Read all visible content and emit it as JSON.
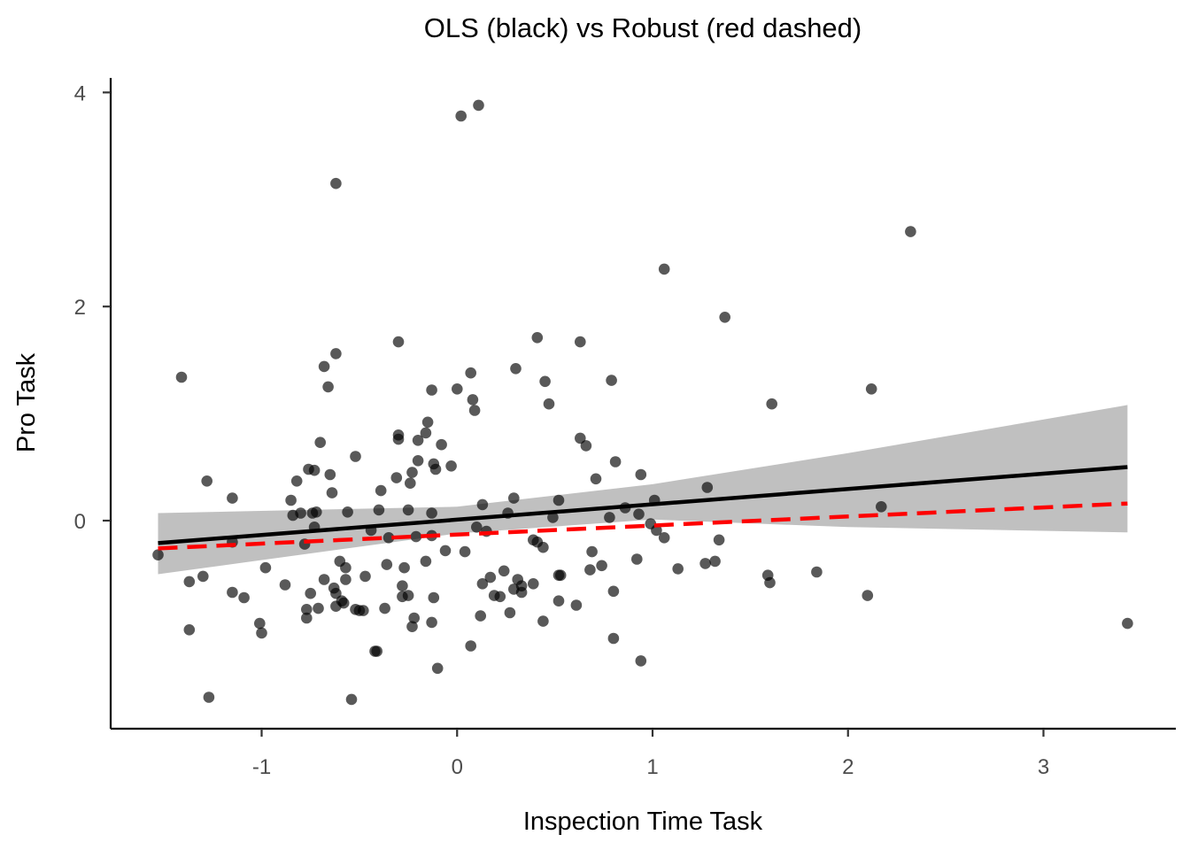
{
  "chart_data": {
    "type": "scatter",
    "title": "OLS (black) vs Robust (red dashed)",
    "xlabel": "Inspection Time Task",
    "ylabel": "Pro Task",
    "xlim": [
      -1.8,
      3.6
    ],
    "ylim": [
      -3.85,
      4.3
    ],
    "x_ticks": [
      -1,
      0,
      1,
      2,
      3
    ],
    "x_tick_labels": [
      "-1",
      "0",
      "1",
      "2",
      "3"
    ],
    "y_ticks": [
      0,
      2,
      4
    ],
    "y_tick_labels": [
      "0",
      "2",
      "4"
    ],
    "grid": false,
    "point_color": "#000000",
    "point_opacity": 0.65,
    "series": [
      {
        "type": "scatter",
        "points": [
          [
            -1.53,
            -0.32
          ],
          [
            -1.41,
            1.34
          ],
          [
            -1.37,
            -0.57
          ],
          [
            -1.37,
            -1.02
          ],
          [
            -1.3,
            -0.52
          ],
          [
            -1.28,
            0.37
          ],
          [
            -1.27,
            -1.65
          ],
          [
            -1.15,
            0.21
          ],
          [
            -1.15,
            -0.2
          ],
          [
            -1.15,
            -0.67
          ],
          [
            -1.09,
            -0.72
          ],
          [
            -1.01,
            -0.96
          ],
          [
            -1.0,
            -1.05
          ],
          [
            -0.98,
            -0.44
          ],
          [
            -0.88,
            -0.6
          ],
          [
            -0.85,
            0.19
          ],
          [
            -0.84,
            0.05
          ],
          [
            -0.82,
            0.37
          ],
          [
            -0.8,
            0.07
          ],
          [
            -0.78,
            -0.22
          ],
          [
            -0.77,
            -0.91
          ],
          [
            -0.77,
            -0.83
          ],
          [
            -0.76,
            0.48
          ],
          [
            -0.75,
            -0.68
          ],
          [
            -0.74,
            0.07
          ],
          [
            -0.73,
            0.47
          ],
          [
            -0.73,
            -0.06
          ],
          [
            -0.72,
            0.08
          ],
          [
            -0.71,
            -0.82
          ],
          [
            -0.7,
            0.73
          ],
          [
            -0.68,
            1.44
          ],
          [
            -0.68,
            -0.55
          ],
          [
            -0.66,
            1.25
          ],
          [
            -0.65,
            0.43
          ],
          [
            -0.64,
            0.26
          ],
          [
            -0.63,
            -0.63
          ],
          [
            -0.62,
            -0.68
          ],
          [
            -0.62,
            -0.8
          ],
          [
            -0.62,
            1.56
          ],
          [
            -0.62,
            3.15
          ],
          [
            -0.6,
            -0.38
          ],
          [
            -0.59,
            -0.75
          ],
          [
            -0.58,
            -0.77
          ],
          [
            -0.57,
            -0.44
          ],
          [
            -0.57,
            -0.55
          ],
          [
            -0.56,
            0.08
          ],
          [
            -0.54,
            -1.67
          ],
          [
            -0.52,
            0.6
          ],
          [
            -0.52,
            -0.83
          ],
          [
            -0.5,
            -0.84
          ],
          [
            -0.48,
            -0.84
          ],
          [
            -0.47,
            -0.52
          ],
          [
            -0.44,
            -0.09
          ],
          [
            -0.42,
            -1.22
          ],
          [
            -0.41,
            -1.22
          ],
          [
            -0.4,
            0.1
          ],
          [
            -0.39,
            0.28
          ],
          [
            -0.37,
            -0.82
          ],
          [
            -0.36,
            -0.41
          ],
          [
            -0.35,
            -0.16
          ],
          [
            -0.31,
            0.4
          ],
          [
            -0.3,
            1.67
          ],
          [
            -0.3,
            0.76
          ],
          [
            -0.3,
            0.8
          ],
          [
            -0.28,
            -0.61
          ],
          [
            -0.28,
            -0.71
          ],
          [
            -0.27,
            -0.44
          ],
          [
            -0.25,
            -0.7
          ],
          [
            -0.25,
            0.1
          ],
          [
            -0.24,
            0.35
          ],
          [
            -0.23,
            -0.99
          ],
          [
            -0.23,
            0.45
          ],
          [
            -0.22,
            -0.91
          ],
          [
            -0.21,
            -0.15
          ],
          [
            -0.2,
            0.56
          ],
          [
            -0.2,
            0.75
          ],
          [
            -0.16,
            0.82
          ],
          [
            -0.16,
            -0.38
          ],
          [
            -0.15,
            0.92
          ],
          [
            -0.13,
            -0.95
          ],
          [
            -0.13,
            1.22
          ],
          [
            -0.13,
            -0.14
          ],
          [
            -0.13,
            0.07
          ],
          [
            -0.12,
            0.53
          ],
          [
            -0.12,
            -0.72
          ],
          [
            -0.11,
            0.48
          ],
          [
            -0.1,
            -1.38
          ],
          [
            -0.08,
            0.71
          ],
          [
            -0.06,
            -0.28
          ],
          [
            -0.03,
            0.51
          ],
          [
            0.0,
            1.23
          ],
          [
            0.02,
            3.78
          ],
          [
            0.04,
            -0.29
          ],
          [
            0.07,
            -1.17
          ],
          [
            0.07,
            1.38
          ],
          [
            0.08,
            1.13
          ],
          [
            0.09,
            1.03
          ],
          [
            0.1,
            -0.06
          ],
          [
            0.11,
            3.88
          ],
          [
            0.12,
            -0.89
          ],
          [
            0.13,
            0.15
          ],
          [
            0.13,
            -0.59
          ],
          [
            0.15,
            -0.1
          ],
          [
            0.17,
            -0.53
          ],
          [
            0.19,
            -0.7
          ],
          [
            0.22,
            -0.71
          ],
          [
            0.24,
            -0.47
          ],
          [
            0.26,
            0.07
          ],
          [
            0.27,
            -0.86
          ],
          [
            0.29,
            -0.64
          ],
          [
            0.29,
            0.21
          ],
          [
            0.3,
            1.42
          ],
          [
            0.31,
            -0.55
          ],
          [
            0.33,
            -0.61
          ],
          [
            0.33,
            -0.67
          ],
          [
            0.39,
            -0.59
          ],
          [
            0.39,
            -0.18
          ],
          [
            0.41,
            -0.2
          ],
          [
            0.41,
            1.71
          ],
          [
            0.44,
            -0.25
          ],
          [
            0.44,
            -0.94
          ],
          [
            0.45,
            1.3
          ],
          [
            0.47,
            1.09
          ],
          [
            0.49,
            0.03
          ],
          [
            0.52,
            -0.75
          ],
          [
            0.52,
            0.19
          ],
          [
            0.52,
            -0.51
          ],
          [
            0.53,
            -0.51
          ],
          [
            0.61,
            -0.79
          ],
          [
            0.63,
            1.67
          ],
          [
            0.63,
            0.77
          ],
          [
            0.66,
            0.7
          ],
          [
            0.68,
            -0.46
          ],
          [
            0.69,
            -0.29
          ],
          [
            0.71,
            0.39
          ],
          [
            0.74,
            -0.42
          ],
          [
            0.78,
            0.03
          ],
          [
            0.79,
            1.31
          ],
          [
            0.8,
            -0.66
          ],
          [
            0.8,
            -1.1
          ],
          [
            0.81,
            0.55
          ],
          [
            0.86,
            0.12
          ],
          [
            0.92,
            -0.36
          ],
          [
            0.93,
            0.06
          ],
          [
            0.94,
            0.43
          ],
          [
            0.94,
            -1.31
          ],
          [
            0.99,
            -0.03
          ],
          [
            1.01,
            0.19
          ],
          [
            1.02,
            -0.09
          ],
          [
            1.06,
            -0.16
          ],
          [
            1.06,
            2.35
          ],
          [
            1.13,
            -0.45
          ],
          [
            1.27,
            -0.4
          ],
          [
            1.28,
            0.31
          ],
          [
            1.32,
            -0.38
          ],
          [
            1.34,
            -0.18
          ],
          [
            1.37,
            1.9
          ],
          [
            1.59,
            -0.51
          ],
          [
            1.6,
            -0.58
          ],
          [
            1.61,
            1.09
          ],
          [
            1.84,
            -0.48
          ],
          [
            2.1,
            -0.7
          ],
          [
            2.12,
            1.23
          ],
          [
            2.17,
            0.13
          ],
          [
            2.32,
            2.7
          ],
          [
            3.43,
            -0.96
          ]
        ]
      },
      {
        "name": "OLS",
        "type": "line",
        "color": "#000000",
        "dash": "solid",
        "x": [
          -1.53,
          3.43
        ],
        "y": [
          -0.21,
          0.5
        ]
      },
      {
        "name": "Robust",
        "type": "line",
        "color": "#ff0000",
        "dash": "dashed",
        "x": [
          -1.53,
          3.43
        ],
        "y": [
          -0.26,
          0.16
        ]
      }
    ],
    "confidence_band": {
      "color": "#bdbdbd",
      "x": [
        -1.53,
        0.0,
        1.0,
        2.0,
        3.43
      ],
      "lower": [
        -0.5,
        -0.12,
        0.01,
        -0.06,
        -0.11
      ],
      "upper": [
        0.07,
        0.13,
        0.34,
        0.63,
        1.08
      ]
    }
  }
}
